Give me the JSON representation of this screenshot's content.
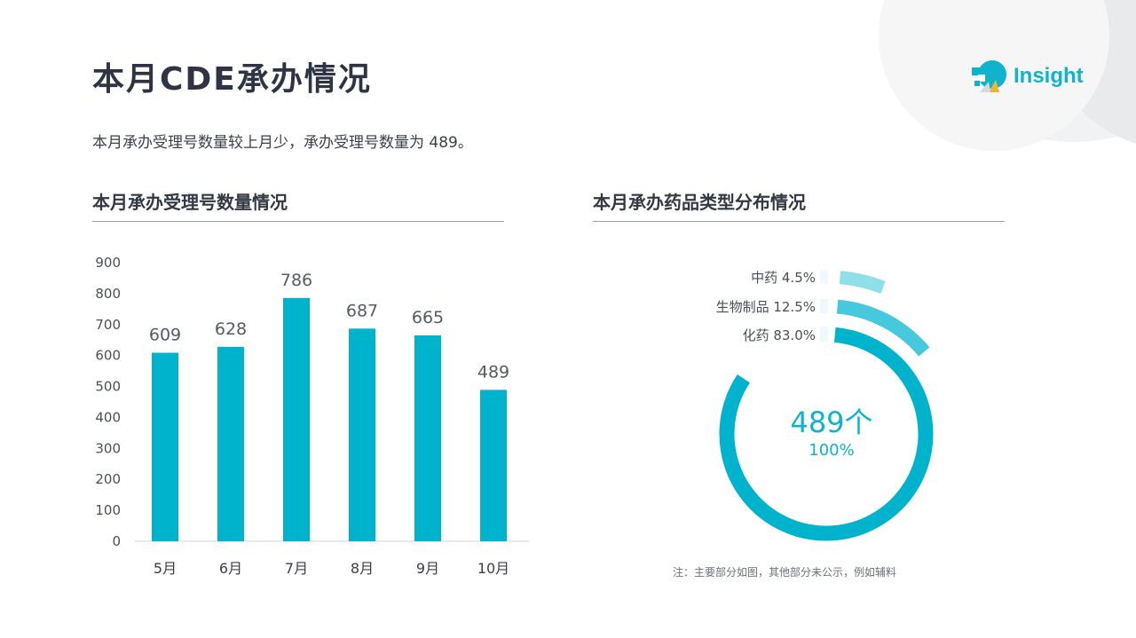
{
  "header": {
    "title": "本月CDE承办情况",
    "logo_text": "Insight"
  },
  "summary": "本月承办受理号数量较上月少，承办受理号数量为  489。",
  "left_section": {
    "title": "本月承办受理号数量情况"
  },
  "right_section": {
    "title": "本月承办药品类型分布情况",
    "center_value": "489个",
    "center_percent": "100%",
    "note": "注：主要部分如图，其他部分未公示，例如辅料"
  },
  "colors": {
    "bar": "#00b3cc",
    "ring_outer": "#00b3cc",
    "ring_mid": "#46c9dc",
    "ring_inner": "#8fdfe9",
    "title": "#2f3444",
    "accent": "#0fb3cc"
  },
  "chart_data": [
    {
      "type": "bar",
      "categories": [
        "5月",
        "6月",
        "7月",
        "8月",
        "9月",
        "10月"
      ],
      "values": [
        609,
        628,
        786,
        687,
        665,
        489
      ],
      "ylim": [
        0,
        900
      ],
      "yticks": [
        0,
        100,
        200,
        300,
        400,
        500,
        600,
        700,
        800,
        900
      ],
      "data_labels": true,
      "grid": false
    },
    {
      "type": "pie",
      "categories": [
        "中药",
        "生物制品",
        "化药"
      ],
      "values": [
        4.5,
        12.5,
        83.0
      ],
      "labels": [
        "中药 4.5%",
        "生物制品  12.5%",
        "化药 83.0%"
      ]
    }
  ]
}
